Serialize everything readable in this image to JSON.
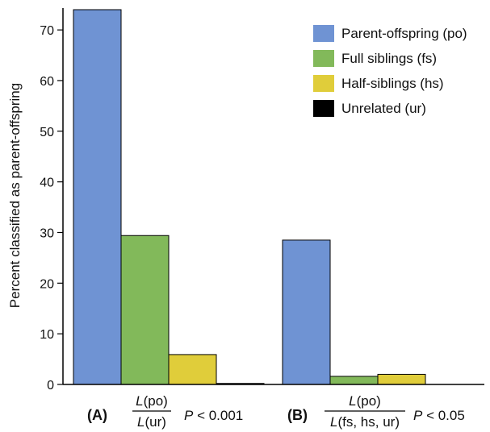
{
  "chart_data": {
    "type": "bar",
    "title": "",
    "xlabel": "",
    "ylabel": "Percent classified as parent-offspring",
    "ylim": [
      0,
      74
    ],
    "yticks": [
      0,
      10,
      20,
      30,
      40,
      50,
      60,
      70
    ],
    "grid": false,
    "legend_position": "top-right",
    "series": [
      {
        "name": "Parent-offspring (po)",
        "color": "#6f93d3",
        "values": [
          74,
          28.5
        ]
      },
      {
        "name": "Full siblings (fs)",
        "color": "#82b95a",
        "values": [
          29.4,
          1.6
        ]
      },
      {
        "name": "Half-siblings (hs)",
        "color": "#e0cd3a",
        "values": [
          5.9,
          2.0
        ]
      },
      {
        "name": "Unrelated (ur)",
        "color": "#000000",
        "values": [
          0.2,
          0
        ]
      }
    ],
    "groups": [
      {
        "tag": "(A)",
        "numerator_L": "L",
        "numerator_args": "(po)",
        "denominator_L": "L",
        "denominator_args": "(ur)",
        "p_symbol": "P",
        "p_rest": " < 0.001"
      },
      {
        "tag": "(B)",
        "numerator_L": "L",
        "numerator_args": "(po)",
        "denominator_L": "L",
        "denominator_args": "(fs, hs, ur)",
        "p_symbol": "P",
        "p_rest": " < 0.05"
      }
    ]
  }
}
